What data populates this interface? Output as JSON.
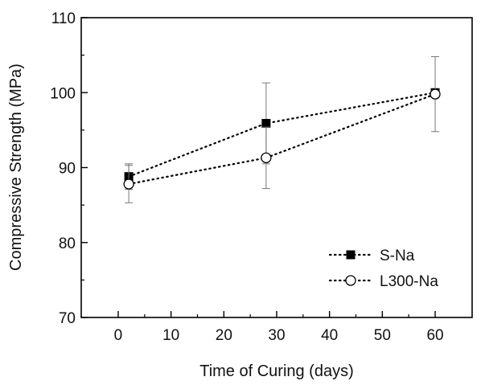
{
  "chart_data": {
    "type": "line",
    "title": "",
    "xlabel": "Time of Curing (days)",
    "ylabel": "Compressive Strength (MPa)",
    "xlim": [
      -7,
      67
    ],
    "ylim": [
      70,
      110
    ],
    "xticks": [
      "0",
      "10",
      "20",
      "30",
      "40",
      "50",
      "60"
    ],
    "yticks": [
      "70",
      "80",
      "90",
      "100",
      "110"
    ],
    "grid": false,
    "legend_position": "bottom-right",
    "series": [
      {
        "name": "S-Na",
        "marker": "filled-square",
        "line": "dotted",
        "color": "#000000",
        "x": [
          2,
          28,
          60
        ],
        "y": [
          88.8,
          95.9,
          100.0
        ],
        "error": [
          1.7,
          5.4,
          0.0
        ]
      },
      {
        "name": "L300-Na",
        "marker": "open-circle",
        "line": "dotted",
        "color": "#000000",
        "x": [
          2,
          28,
          60
        ],
        "y": [
          87.8,
          91.3,
          99.8
        ],
        "error": [
          2.5,
          4.1,
          5.0
        ]
      }
    ]
  }
}
